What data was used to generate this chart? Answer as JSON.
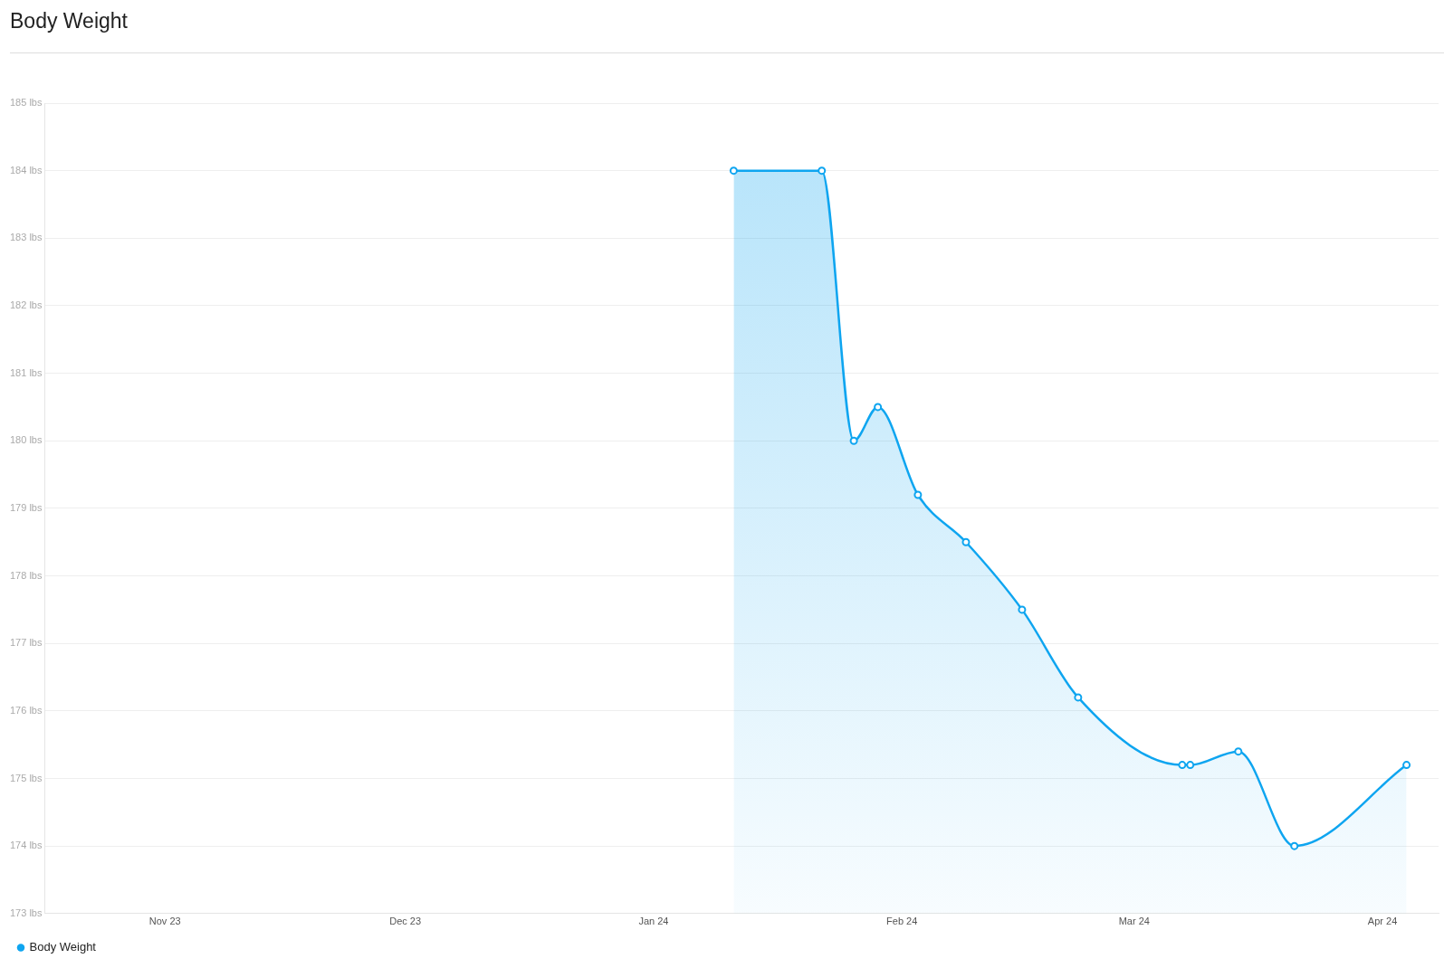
{
  "chart_data": {
    "type": "area",
    "title": "Body Weight",
    "x": [
      "2024-01-11",
      "2024-01-22",
      "2024-01-26",
      "2024-01-29",
      "2024-02-03",
      "2024-02-09",
      "2024-02-16",
      "2024-02-23",
      "2024-03-07",
      "2024-03-08",
      "2024-03-14",
      "2024-03-21",
      "2024-04-04"
    ],
    "series": [
      {
        "name": "Body Weight",
        "color": "#0ea5f0",
        "values": [
          184,
          184,
          180,
          180.5,
          179.2,
          178.5,
          177.5,
          176.2,
          175.2,
          175.2,
          175.4,
          174,
          175.2
        ]
      }
    ],
    "xlim": [
      "2023-10-17",
      "2024-04-08"
    ],
    "xticks": [
      {
        "value": "2023-11-01",
        "label": "Nov 23"
      },
      {
        "value": "2023-12-01",
        "label": "Dec 23"
      },
      {
        "value": "2024-01-01",
        "label": "Jan 24"
      },
      {
        "value": "2024-02-01",
        "label": "Feb 24"
      },
      {
        "value": "2024-03-01",
        "label": "Mar 24"
      },
      {
        "value": "2024-04-01",
        "label": "Apr 24"
      }
    ],
    "ylim": [
      173,
      185
    ],
    "yticks": [
      {
        "value": 173,
        "label": "173 lbs"
      },
      {
        "value": 174,
        "label": "174 lbs"
      },
      {
        "value": 175,
        "label": "175 lbs"
      },
      {
        "value": 176,
        "label": "176 lbs"
      },
      {
        "value": 177,
        "label": "177 lbs"
      },
      {
        "value": 178,
        "label": "178 lbs"
      },
      {
        "value": 179,
        "label": "179 lbs"
      },
      {
        "value": 180,
        "label": "180 lbs"
      },
      {
        "value": 181,
        "label": "181 lbs"
      },
      {
        "value": 182,
        "label": "182 lbs"
      },
      {
        "value": 183,
        "label": "183 lbs"
      },
      {
        "value": 184,
        "label": "184 lbs"
      },
      {
        "value": 185,
        "label": "185 lbs"
      }
    ],
    "grid": "y",
    "legend": "bottom left",
    "marker": "circle"
  }
}
